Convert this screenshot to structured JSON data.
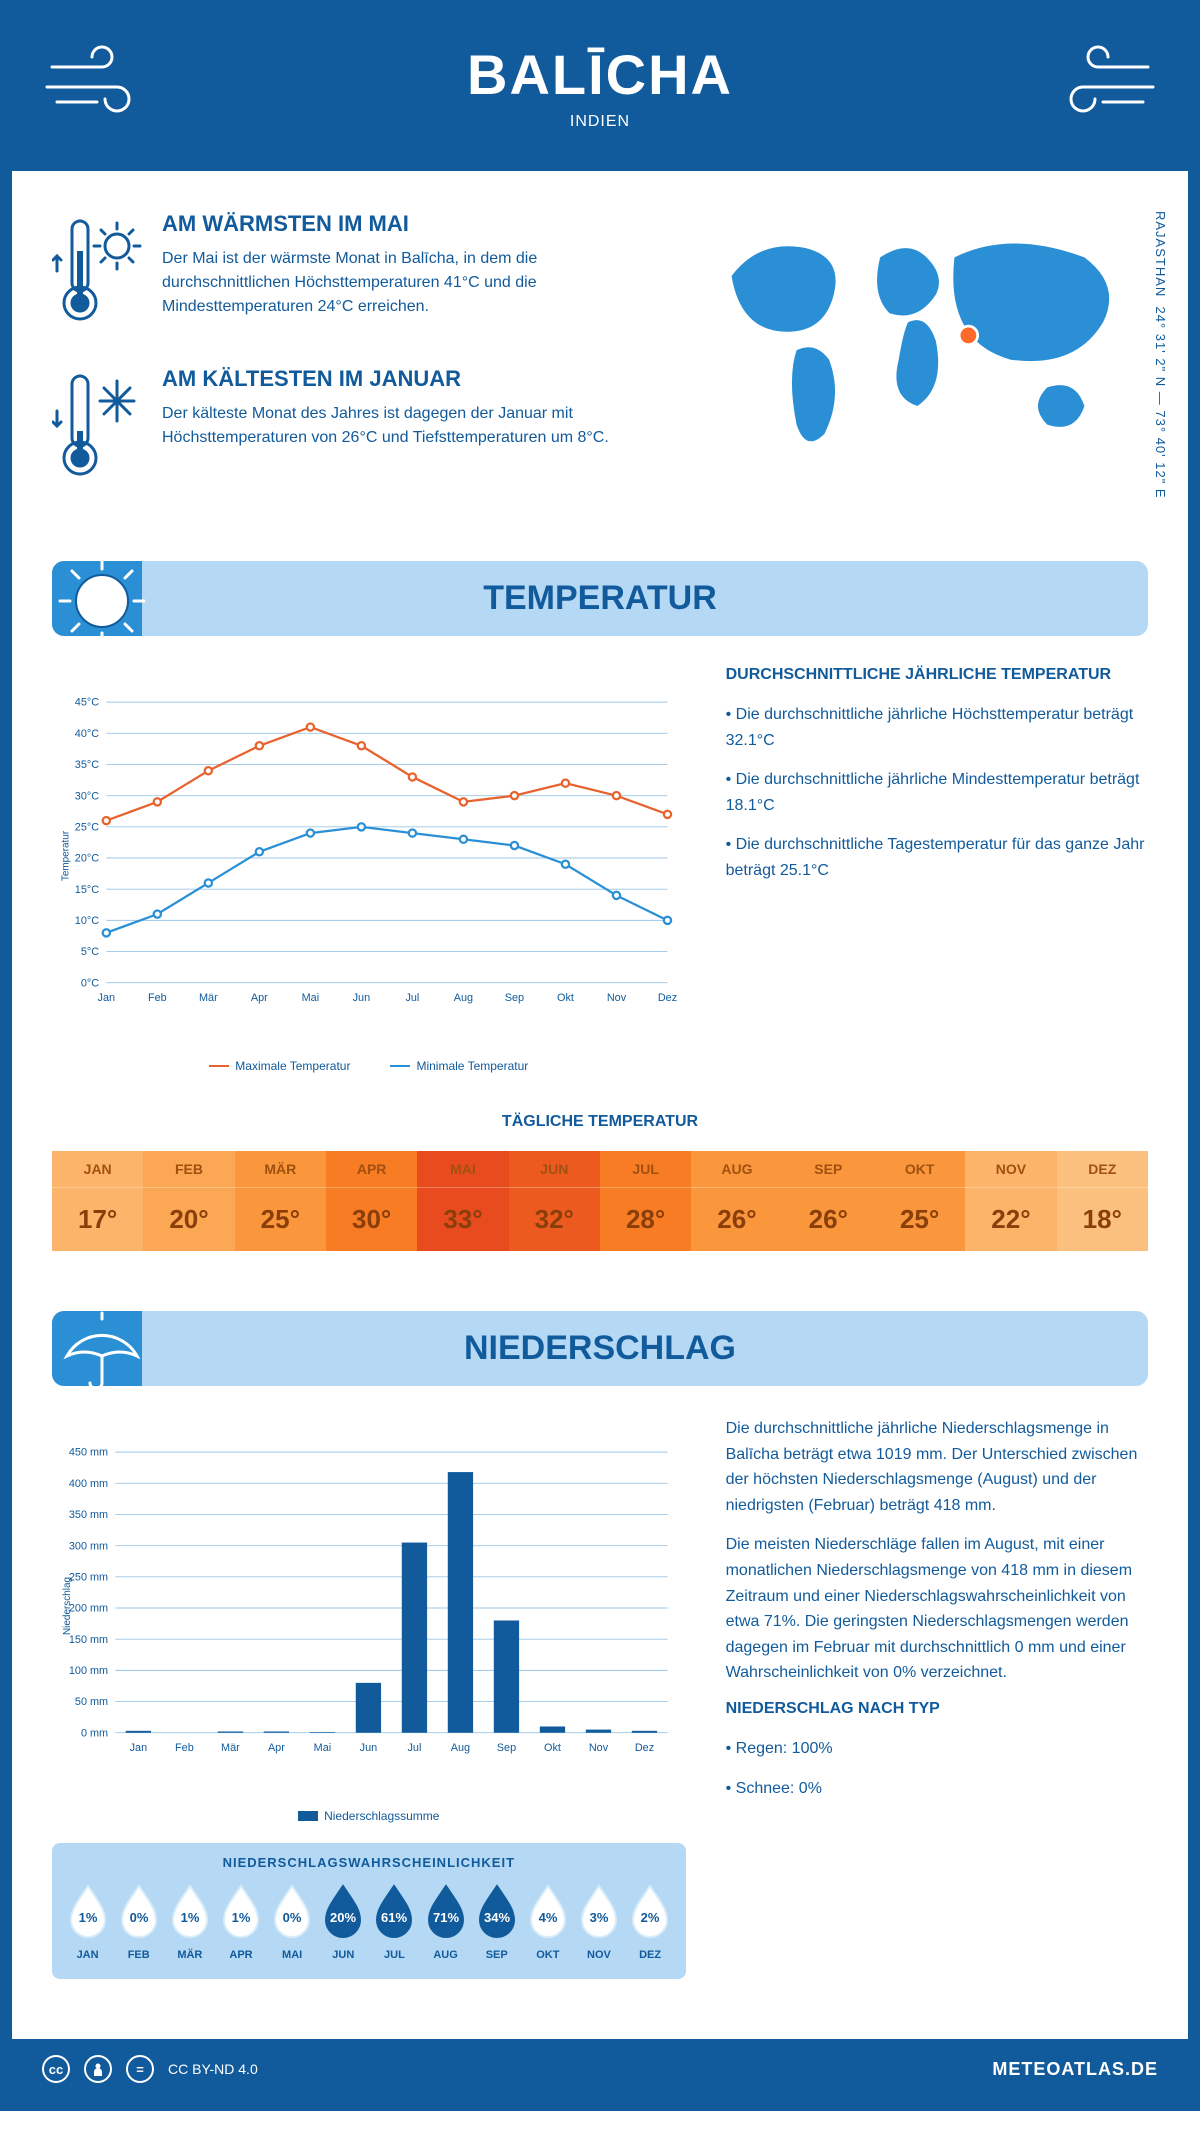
{
  "header": {
    "title": "BALĪCHA",
    "subtitle": "INDIEN"
  },
  "coords": {
    "text": "24° 31' 2\" N — 73° 40' 12\" E",
    "region": "RAJASTHAN"
  },
  "map": {
    "marker_color": "#ff6a2b",
    "land_color": "#2b8fd6",
    "marker_left_pct": 63,
    "marker_top_pct": 48
  },
  "facts": {
    "warm": {
      "title": "AM WÄRMSTEN IM MAI",
      "text": "Der Mai ist der wärmste Monat in Balīcha, in dem die durchschnittlichen Höchsttemperaturen 41°C und die Mindesttemperaturen 24°C erreichen."
    },
    "cold": {
      "title": "AM KÄLTESTEN IM JANUAR",
      "text": "Der kälteste Monat des Jahres ist dagegen der Januar mit Höchsttemperaturen von 26°C und Tiefsttemperaturen um 8°C."
    }
  },
  "temperature": {
    "section_title": "TEMPERATUR",
    "months": [
      "Jan",
      "Feb",
      "Mär",
      "Apr",
      "Mai",
      "Jun",
      "Jul",
      "Aug",
      "Sep",
      "Okt",
      "Nov",
      "Dez"
    ],
    "max_series": {
      "label": "Maximale Temperatur",
      "color": "#e8622d",
      "values": [
        26,
        29,
        34,
        38,
        41,
        38,
        33,
        29,
        30,
        32,
        30,
        27
      ]
    },
    "min_series": {
      "label": "Minimale Temperatur",
      "color": "#2b8fd6",
      "values": [
        8,
        11,
        16,
        21,
        24,
        25,
        24,
        23,
        22,
        19,
        14,
        10
      ]
    },
    "ylim": [
      0,
      45
    ],
    "ytick_step": 5,
    "ylabel": "Temperatur",
    "y_unit": "°C",
    "grid_color": "#9cc6e8",
    "background": "#ffffff",
    "info_title": "DURCHSCHNITTLICHE JÄHRLICHE TEMPERATUR",
    "info_points": [
      "• Die durchschnittliche jährliche Höchsttemperatur beträgt 32.1°C",
      "• Die durchschnittliche jährliche Mindesttemperatur beträgt 18.1°C",
      "• Die durchschnittliche Tagestemperatur für das ganze Jahr beträgt 25.1°C"
    ]
  },
  "daily_temp": {
    "title": "TÄGLICHE TEMPERATUR",
    "months": [
      "JAN",
      "FEB",
      "MÄR",
      "APR",
      "MAI",
      "JUN",
      "JUL",
      "AUG",
      "SEP",
      "OKT",
      "NOV",
      "DEZ"
    ],
    "values": [
      "17°",
      "20°",
      "25°",
      "30°",
      "33°",
      "32°",
      "28°",
      "26°",
      "26°",
      "25°",
      "22°",
      "18°"
    ],
    "bg_colors": [
      "#fbb469",
      "#fba754",
      "#fa963b",
      "#f77c23",
      "#e84b1e",
      "#ec5a20",
      "#f77c23",
      "#fa963b",
      "#fa963b",
      "#fa963b",
      "#fbb469",
      "#fcc07e"
    ],
    "header_text_color": "#c86a20",
    "value_text_color": "#9e4e15",
    "divider_color": "#ffffff33"
  },
  "precip": {
    "section_title": "NIEDERSCHLAG",
    "months": [
      "Jan",
      "Feb",
      "Mär",
      "Apr",
      "Mai",
      "Jun",
      "Jul",
      "Aug",
      "Sep",
      "Okt",
      "Nov",
      "Dez"
    ],
    "values": [
      3,
      0,
      2,
      2,
      1,
      80,
      305,
      418,
      180,
      10,
      5,
      3
    ],
    "ylim": [
      0,
      450
    ],
    "ytick_step": 50,
    "ylabel": "Niederschlag",
    "y_unit": " mm",
    "bar_color": "#115a9b",
    "grid_color": "#9cc6e8",
    "legend_label": "Niederschlagssumme",
    "text_p1": "Die durchschnittliche jährliche Niederschlagsmenge in Balīcha beträgt etwa 1019 mm. Der Unterschied zwischen der höchsten Niederschlagsmenge (August) und der niedrigsten (Februar) beträgt 418 mm.",
    "text_p2": "Die meisten Niederschläge fallen im August, mit einer monatlichen Niederschlagsmenge von 418 mm in diesem Zeitraum und einer Niederschlagswahrscheinlichkeit von etwa 71%. Die geringsten Niederschlagsmengen werden dagegen im Februar mit durchschnittlich 0 mm und einer Wahrscheinlichkeit von 0% verzeichnet.",
    "type_title": "NIEDERSCHLAG NACH TYP",
    "type_points": [
      "• Regen: 100%",
      "• Schnee: 0%"
    ]
  },
  "probability": {
    "title": "NIEDERSCHLAGSWAHRSCHEINLICHKEIT",
    "months": [
      "JAN",
      "FEB",
      "MÄR",
      "APR",
      "MAI",
      "JUN",
      "JUL",
      "AUG",
      "SEP",
      "OKT",
      "NOV",
      "DEZ"
    ],
    "values": [
      "1%",
      "0%",
      "1%",
      "1%",
      "0%",
      "20%",
      "61%",
      "71%",
      "34%",
      "4%",
      "3%",
      "2%"
    ],
    "filled": [
      false,
      false,
      false,
      false,
      false,
      true,
      true,
      true,
      true,
      false,
      false,
      false
    ],
    "drop_fill": "#115a9b",
    "drop_outline": "#ffffff",
    "drop_empty_fill": "#ffffff",
    "text_on_fill": "#ffffff",
    "text_on_empty": "#115a9b"
  },
  "footer": {
    "license": "CC BY-ND 4.0",
    "site": "METEOATLAS.DE"
  },
  "colors": {
    "primary": "#115a9b",
    "light": "#b5d9f4",
    "accent": "#2b8fd6"
  }
}
